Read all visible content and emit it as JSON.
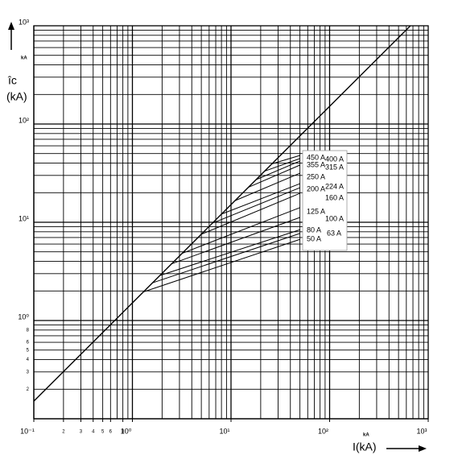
{
  "chart_data": {
    "type": "line",
    "log_scale": true,
    "grid": true,
    "color": "#000000",
    "y_axis_label": "îc",
    "y_axis_unit": "(kA)",
    "y_axis_arrow_label": "kA",
    "x_axis_label": "I(kA)",
    "x_axis_unit_label": "kA",
    "xlim": [
      0.1,
      1000
    ],
    "ylim": [
      0.1,
      1000
    ],
    "xticks": [
      {
        "value": 0.1,
        "label": "10⁻¹"
      },
      {
        "value": 0.2,
        "label": "2"
      },
      {
        "value": 0.3,
        "label": "3"
      },
      {
        "value": 0.4,
        "label": "4"
      },
      {
        "value": 0.5,
        "label": "5"
      },
      {
        "value": 0.6,
        "label": "6"
      },
      {
        "value": 0.8,
        "label": "8"
      },
      {
        "value": 1,
        "label": "10⁰"
      },
      {
        "value": 10,
        "label": "10¹"
      },
      {
        "value": 100,
        "label": "10²"
      },
      {
        "value": 1000,
        "label": "10³"
      }
    ],
    "yticks": [
      {
        "value": 0.2,
        "label": "2"
      },
      {
        "value": 0.3,
        "label": "3"
      },
      {
        "value": 0.4,
        "label": "4"
      },
      {
        "value": 0.5,
        "label": "5"
      },
      {
        "value": 0.6,
        "label": "6"
      },
      {
        "value": 0.8,
        "label": "8"
      },
      {
        "value": 1,
        "label": "10⁰"
      },
      {
        "value": 10,
        "label": "10¹"
      },
      {
        "value": 100,
        "label": "10²"
      },
      {
        "value": 1000,
        "label": "10³"
      }
    ],
    "envelope": {
      "x": [
        0.1,
        660
      ],
      "values": [
        0.151,
        1000
      ]
    },
    "series": [
      {
        "name": "50 A",
        "x": [
          1.3,
          50
        ],
        "values": [
          1.96,
          6.7
        ]
      },
      {
        "name": "63 A",
        "x": [
          1.6,
          50
        ],
        "values": [
          2.42,
          7.7
        ]
      },
      {
        "name": "80 A",
        "x": [
          1.9,
          50
        ],
        "values": [
          2.87,
          8.4
        ]
      },
      {
        "name": "100 A",
        "x": [
          2.5,
          50
        ],
        "values": [
          3.78,
          11.2
        ]
      },
      {
        "name": "125 A",
        "x": [
          3.2,
          50
        ],
        "values": [
          4.83,
          14.1
        ]
      },
      {
        "name": "160 A",
        "x": [
          5,
          50
        ],
        "values": [
          7.55,
          19.7
        ]
      },
      {
        "name": "200 A",
        "x": [
          6.5,
          50
        ],
        "values": [
          9.8,
          22.5
        ]
      },
      {
        "name": "224 A",
        "x": [
          8,
          50
        ],
        "values": [
          12.1,
          24.7
        ]
      },
      {
        "name": "250 A",
        "x": [
          11,
          50
        ],
        "values": [
          16.6,
          31.6
        ]
      },
      {
        "name": "315 A",
        "x": [
          15,
          50
        ],
        "values": [
          22.7,
          38.2
        ]
      },
      {
        "name": "355 A",
        "x": [
          18,
          50
        ],
        "values": [
          27.2,
          42
        ]
      },
      {
        "name": "400 A",
        "x": [
          22,
          50
        ],
        "values": [
          33.2,
          44.5
        ]
      },
      {
        "name": "450 A",
        "x": [
          26,
          50
        ],
        "values": [
          39.3,
          47.9
        ]
      }
    ]
  }
}
